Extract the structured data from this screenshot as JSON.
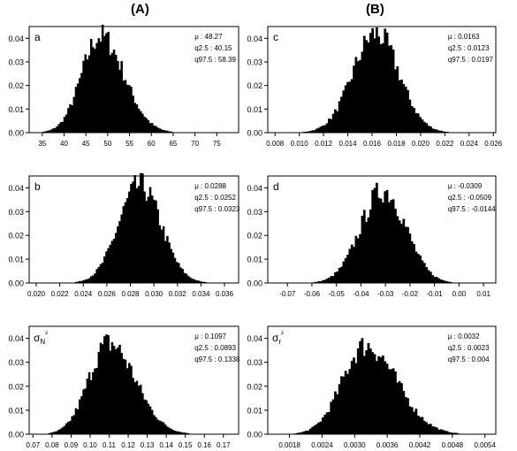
{
  "columns": [
    "(A)",
    "(B)"
  ],
  "chart_data": [
    {
      "type": "histogram",
      "panel_label": "a",
      "mean": 48.27,
      "sd": 4.6,
      "xlim": [
        32,
        80
      ],
      "ylim": [
        0,
        0.045
      ],
      "xticks": [
        "35",
        "40",
        "45",
        "50",
        "55",
        "60",
        "65",
        "70",
        "75"
      ],
      "xtick_values": [
        35,
        40,
        45,
        50,
        55,
        60,
        65,
        70,
        75
      ],
      "yticks": [
        "0.00",
        "0.01",
        "0.02",
        "0.03",
        "0.04"
      ],
      "ytick_values": [
        0,
        0.01,
        0.02,
        0.03,
        0.04
      ],
      "ypeak": 0.041,
      "skew": 0.5,
      "stats": [
        "μ : 48.27",
        "q2.5 : 40.15",
        "q97.5 : 58.39"
      ]
    },
    {
      "type": "histogram",
      "panel_label": "c",
      "mean": 0.0163,
      "sd": 0.0019,
      "xlim": [
        0.0074,
        0.0262
      ],
      "ylim": [
        0,
        0.045
      ],
      "xticks": [
        "0.008",
        "0.010",
        "0.012",
        "0.014",
        "0.016",
        "0.018",
        "0.020",
        "0.022",
        "0.024",
        "0.026"
      ],
      "xtick_values": [
        0.008,
        0.01,
        0.012,
        0.014,
        0.016,
        0.018,
        0.02,
        0.022,
        0.024,
        0.026
      ],
      "yticks": [
        "0.00",
        "0.01",
        "0.02",
        "0.03",
        "0.04"
      ],
      "ytick_values": [
        0,
        0.01,
        0.02,
        0.03,
        0.04
      ],
      "ypeak": 0.042,
      "skew": 0,
      "stats": [
        "μ : 0.0163",
        "q2.5 : 0.0123",
        "q97.5 : 0.0197"
      ]
    },
    {
      "type": "histogram",
      "panel_label": "b",
      "mean": 0.0288,
      "sd": 0.0018,
      "xlim": [
        0.0194,
        0.0372
      ],
      "ylim": [
        0,
        0.045
      ],
      "xticks": [
        "0.020",
        "0.022",
        "0.024",
        "0.026",
        "0.028",
        "0.030",
        "0.032",
        "0.034",
        "0.036"
      ],
      "xtick_values": [
        0.02,
        0.022,
        0.024,
        0.026,
        0.028,
        0.03,
        0.032,
        0.034,
        0.036
      ],
      "yticks": [
        "0.00",
        "0.01",
        "0.02",
        "0.03",
        "0.04"
      ],
      "ytick_values": [
        0,
        0.01,
        0.02,
        0.03,
        0.04
      ],
      "ypeak": 0.041,
      "skew": 0,
      "stats": [
        "μ : 0.0288",
        "q2.5 : 0.0252",
        "q97.5 : 0.0323"
      ]
    },
    {
      "type": "histogram",
      "panel_label": "d",
      "mean": -0.0309,
      "sd": 0.0092,
      "xlim": [
        -0.078,
        0.015
      ],
      "ylim": [
        0,
        0.045
      ],
      "xticks": [
        "-0.07",
        "-0.06",
        "-0.05",
        "-0.04",
        "-0.03",
        "-0.02",
        "-0.01",
        "0.00",
        "0.01"
      ],
      "xtick_values": [
        -0.07,
        -0.06,
        -0.05,
        -0.04,
        -0.03,
        -0.02,
        -0.01,
        0.0,
        0.01
      ],
      "yticks": [
        "0.00",
        "0.01",
        "0.02",
        "0.03",
        "0.04"
      ],
      "ytick_values": [
        0,
        0.01,
        0.02,
        0.03,
        0.04
      ],
      "ypeak": 0.039,
      "skew": 0,
      "stats": [
        "μ : -0.0309",
        "q2.5 : -0.0509",
        "q97.5 : -0.0144"
      ]
    },
    {
      "type": "histogram",
      "panel_label": "σN²",
      "mean": 0.1097,
      "sd": 0.0115,
      "xlim": [
        0.068,
        0.178
      ],
      "ylim": [
        0,
        0.045
      ],
      "xticks": [
        "0.07",
        "0.08",
        "0.09",
        "0.10",
        "0.11",
        "0.12",
        "0.13",
        "0.14",
        "0.15",
        "0.16",
        "0.17"
      ],
      "xtick_values": [
        0.07,
        0.08,
        0.09,
        0.1,
        0.11,
        0.12,
        0.13,
        0.14,
        0.15,
        0.16,
        0.17
      ],
      "yticks": [
        "0.00",
        "0.01",
        "0.02",
        "0.03",
        "0.04"
      ],
      "ytick_values": [
        0,
        0.01,
        0.02,
        0.03,
        0.04
      ],
      "ypeak": 0.038,
      "skew": 0.6,
      "stats": [
        "μ : 0.1097",
        "q2.5 : 0.0893",
        "q97.5 : 0.1338"
      ]
    },
    {
      "type": "histogram",
      "panel_label": "σr²",
      "mean": 0.0032,
      "sd": 0.00047,
      "xlim": [
        0.0014,
        0.0056
      ],
      "ylim": [
        0,
        0.045
      ],
      "xticks": [
        "0.0018",
        "0.0024",
        "0.0030",
        "0.0036",
        "0.0042",
        "0.0048",
        "0.0054"
      ],
      "xtick_values": [
        0.0018,
        0.0024,
        0.003,
        0.0036,
        0.0042,
        0.0048,
        0.0054
      ],
      "yticks": [
        "0.00",
        "0.01",
        "0.02",
        "0.03",
        "0.04"
      ],
      "ytick_values": [
        0,
        0.01,
        0.02,
        0.03,
        0.04
      ],
      "ypeak": 0.037,
      "skew": 0.6,
      "stats": [
        "μ : 0.0032",
        "q2.5 : 0.0023",
        "q97.5 : 0.004"
      ]
    }
  ]
}
